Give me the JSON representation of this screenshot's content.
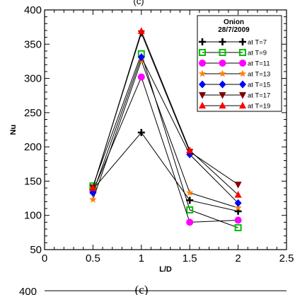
{
  "figure": {
    "top_caption": "(c)",
    "bottom_caption": "(c)",
    "next_panel_top_tick": "400"
  },
  "chart_data": {
    "type": "line",
    "title": "",
    "xlabel": "L/D",
    "ylabel": "Nu",
    "xlim": [
      0,
      2.5
    ],
    "ylim": [
      50,
      400
    ],
    "x_ticks": [
      "0",
      "0.5",
      "1",
      "1.5",
      "2",
      "2.5"
    ],
    "y_ticks": [
      "50",
      "100",
      "150",
      "200",
      "250",
      "300",
      "350",
      "400"
    ],
    "grid": false,
    "legend_position": "top-right",
    "legend_title": [
      "Onion",
      "28/7/2009"
    ],
    "x": [
      0.5,
      1,
      1.5,
      2
    ],
    "series": [
      {
        "name": "at T=7",
        "marker": "plus",
        "color": "#000000",
        "values": [
          138,
          221,
          122,
          106
        ]
      },
      {
        "name": "at T=9",
        "marker": "square-open",
        "color": "#00c000",
        "values": [
          143,
          336,
          108,
          82
        ]
      },
      {
        "name": "at T=11",
        "marker": "circle",
        "color": "#ff00ff",
        "values": [
          135,
          302,
          90,
          93
        ]
      },
      {
        "name": "at T=13",
        "marker": "star",
        "color": "#ff8000",
        "values": [
          123,
          326,
          133,
          111
        ]
      },
      {
        "name": "at T=15",
        "marker": "diamond",
        "color": "#0000ff",
        "values": [
          133,
          331,
          189,
          118
        ]
      },
      {
        "name": "at T=17",
        "marker": "triangle-down",
        "color": "#800000",
        "values": [
          141,
          366,
          193,
          145
        ]
      },
      {
        "name": "at T=19",
        "marker": "triangle-up",
        "color": "#ff0000",
        "values": [
          140,
          369,
          195,
          130
        ]
      }
    ]
  }
}
